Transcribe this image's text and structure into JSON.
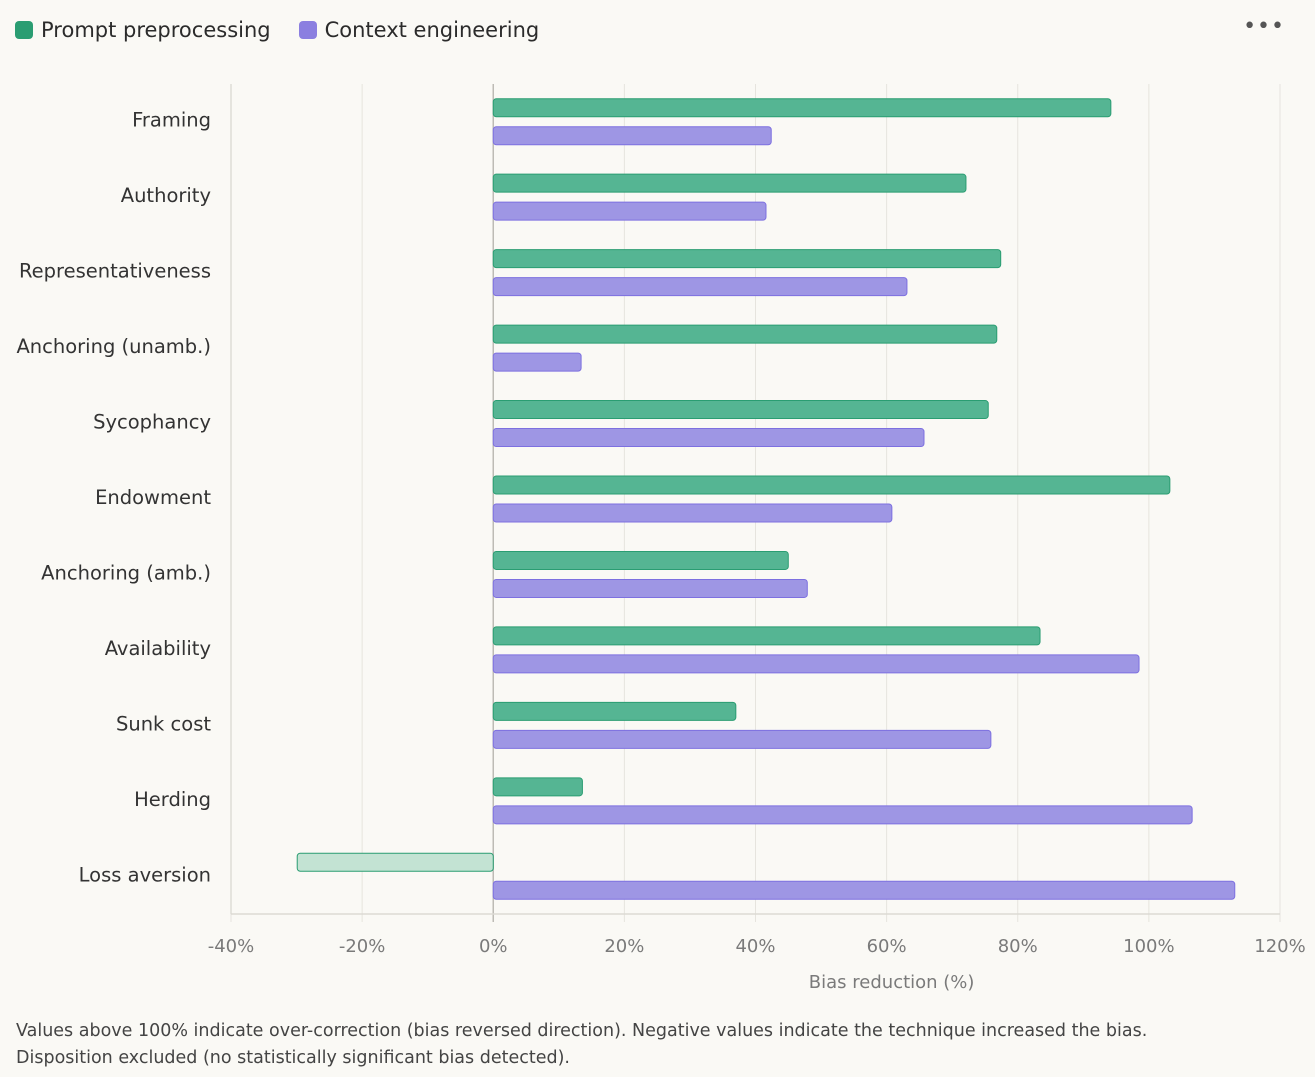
{
  "chart_data": {
    "type": "bar",
    "orientation": "horizontal",
    "categories": [
      "Framing",
      "Authority",
      "Representativeness",
      "Anchoring (unamb.)",
      "Sycophancy",
      "Endowment",
      "Anchoring (amb.)",
      "Availability",
      "Sunk cost",
      "Herding",
      "Loss aversion"
    ],
    "series": [
      {
        "name": "Prompt preprocessing",
        "color": "#2a9d72",
        "values": [
          94.2,
          72.1,
          77.4,
          76.8,
          75.5,
          103.2,
          45.0,
          83.4,
          37.0,
          13.6,
          -29.9
        ]
      },
      {
        "name": "Context engineering",
        "color": "#8b7fe0",
        "values": [
          42.4,
          41.6,
          63.1,
          13.4,
          65.7,
          60.8,
          47.9,
          98.5,
          75.9,
          106.6,
          113.1
        ]
      }
    ],
    "xlabel": "Bias reduction (%)",
    "xlim": [
      -40,
      120
    ],
    "xticks": [
      -40,
      -20,
      0,
      20,
      40,
      60,
      80,
      100,
      120
    ],
    "xtick_labels": [
      "-40%",
      "-20%",
      "0%",
      "20%",
      "40%",
      "60%",
      "80%",
      "100%",
      "120%"
    ],
    "grid": true,
    "legend": "top-left"
  },
  "menu_label": "•••",
  "footnote": [
    "Values above 100% indicate over-correction (bias reversed direction). Negative values indicate the technique increased the bias.",
    "Disposition excluded (no statistically significant bias detected)."
  ]
}
